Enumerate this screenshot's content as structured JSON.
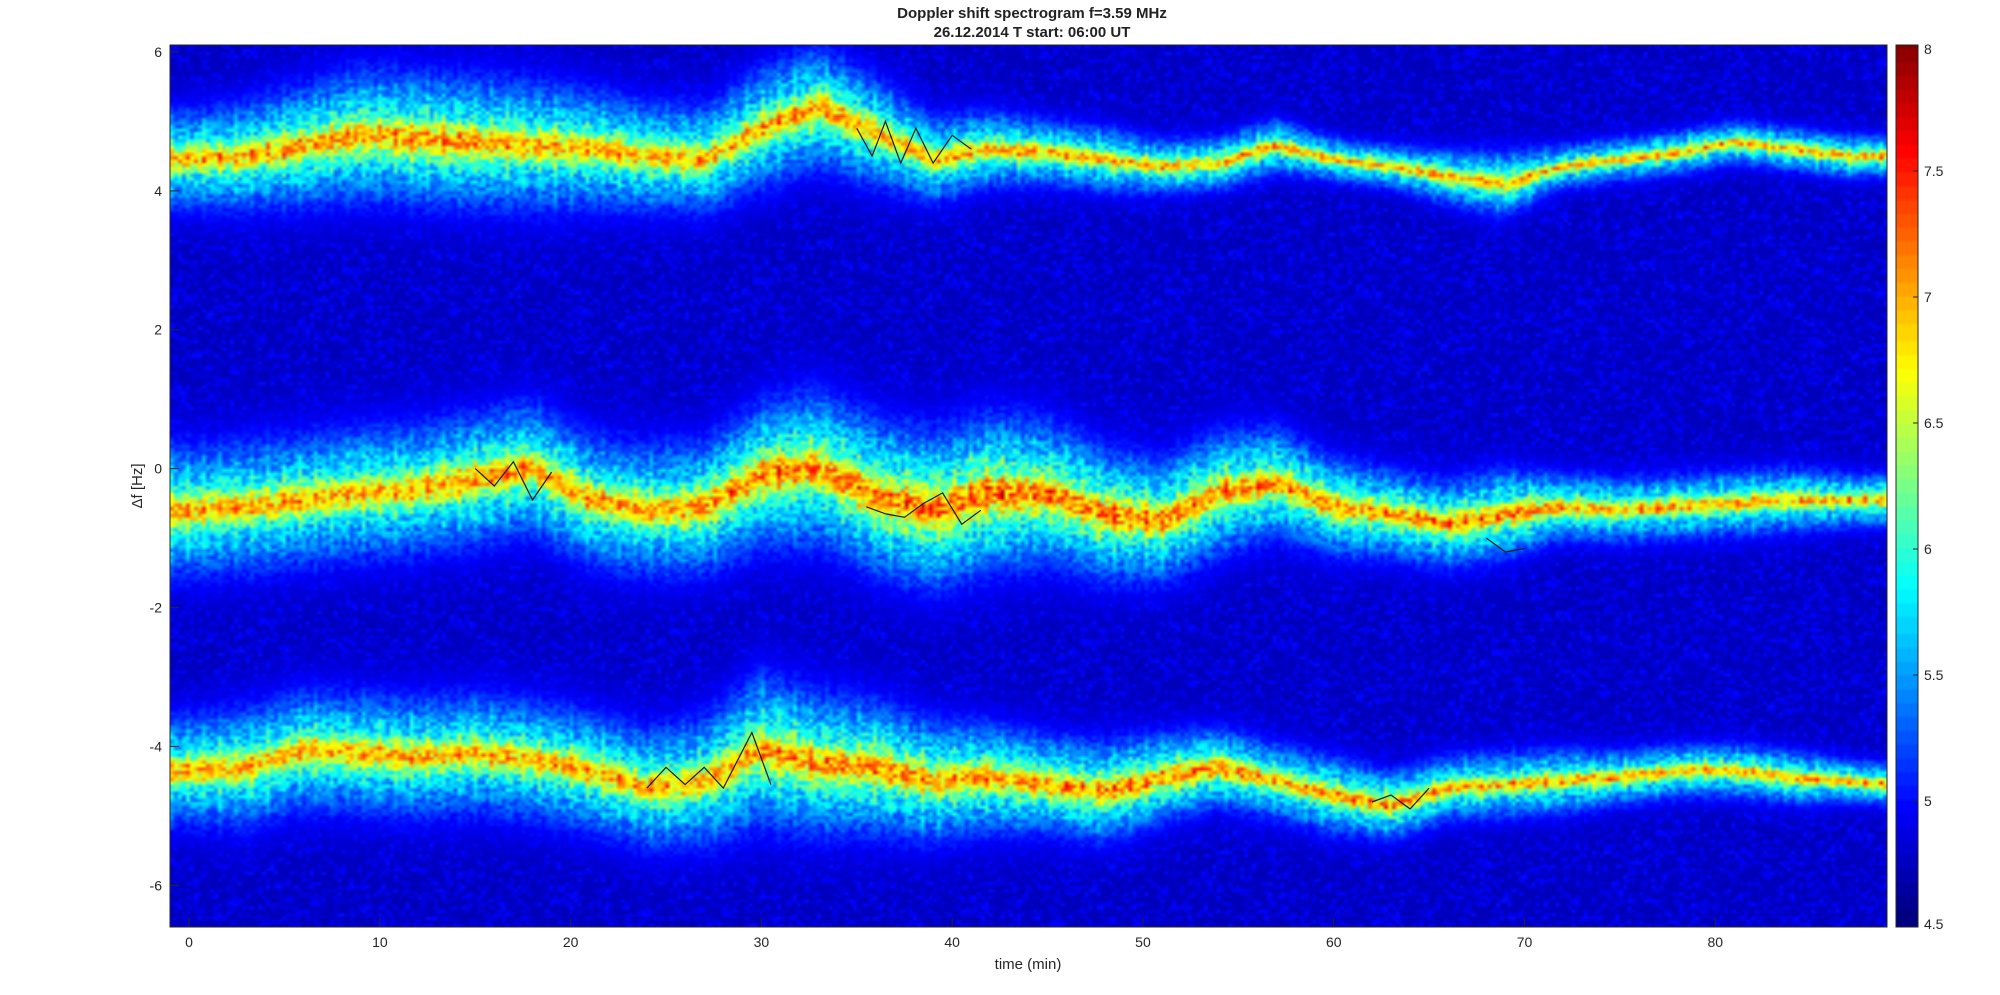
{
  "chart_data": {
    "type": "heatmap",
    "title": "Doppler shift spectrogram f=3.59 MHz",
    "subtitle": "26.12.2014   T start: 06:00 UT",
    "xlabel": "time (min)",
    "ylabel": "Δf [Hz]",
    "xlim": [
      -1,
      89
    ],
    "ylim": [
      -6.6,
      6.1
    ],
    "x_ticks": [
      0,
      10,
      20,
      30,
      40,
      50,
      60,
      70,
      80
    ],
    "y_ticks": [
      6,
      4,
      2,
      0,
      -2,
      -4,
      -6
    ],
    "colorbar": {
      "limits": [
        4.5,
        8
      ],
      "ticks": [
        8,
        7.5,
        7,
        6.5,
        6,
        5.5,
        5,
        4.5
      ],
      "colormap": "jet"
    },
    "background_value": 4.7,
    "series": [
      {
        "name": "",
        "x": [
          0,
          3,
          6,
          9,
          12,
          15,
          18,
          21,
          24,
          27,
          30,
          33,
          36,
          39,
          42,
          45,
          48,
          51,
          54,
          57,
          60,
          63,
          66,
          69,
          72,
          75,
          78,
          81,
          84,
          87,
          89
        ],
        "y": [
          4.45,
          4.5,
          4.65,
          4.8,
          4.75,
          4.7,
          4.65,
          4.6,
          4.5,
          4.45,
          4.9,
          5.2,
          4.85,
          4.45,
          4.6,
          4.55,
          4.45,
          4.35,
          4.4,
          4.65,
          4.45,
          4.35,
          4.2,
          4.1,
          4.35,
          4.45,
          4.55,
          4.7,
          4.6,
          4.5,
          4.5
        ],
        "width": [
          0.45,
          0.5,
          0.55,
          0.6,
          0.6,
          0.6,
          0.6,
          0.55,
          0.5,
          0.5,
          0.55,
          0.55,
          0.5,
          0.4,
          0.35,
          0.3,
          0.3,
          0.25,
          0.25,
          0.25,
          0.2,
          0.2,
          0.25,
          0.3,
          0.2,
          0.2,
          0.2,
          0.2,
          0.2,
          0.2,
          0.2
        ],
        "peak": [
          7.0,
          7.0,
          7.1,
          7.1,
          7.1,
          7.1,
          7.0,
          7.0,
          7.0,
          7.0,
          7.0,
          7.1,
          7.0,
          7.0,
          7.0,
          7.0,
          7.0,
          7.0,
          7.0,
          7.0,
          7.0,
          7.0,
          7.0,
          7.0,
          7.0,
          7.0,
          7.0,
          7.0,
          7.0,
          7.0,
          7.0
        ]
      },
      {
        "name": "",
        "x": [
          0,
          3,
          6,
          9,
          12,
          15,
          18,
          21,
          24,
          27,
          30,
          33,
          36,
          39,
          42,
          45,
          48,
          51,
          54,
          57,
          60,
          63,
          66,
          69,
          72,
          75,
          78,
          81,
          84,
          87,
          89
        ],
        "y": [
          -0.6,
          -0.55,
          -0.45,
          -0.35,
          -0.3,
          -0.15,
          0.0,
          -0.45,
          -0.6,
          -0.55,
          -0.1,
          0.0,
          -0.4,
          -0.6,
          -0.35,
          -0.35,
          -0.65,
          -0.75,
          -0.35,
          -0.2,
          -0.55,
          -0.65,
          -0.8,
          -0.65,
          -0.55,
          -0.6,
          -0.55,
          -0.5,
          -0.45,
          -0.45,
          -0.45
        ],
        "width": [
          0.6,
          0.6,
          0.6,
          0.6,
          0.6,
          0.6,
          0.6,
          0.6,
          0.6,
          0.6,
          0.65,
          0.7,
          0.7,
          0.7,
          0.7,
          0.65,
          0.6,
          0.55,
          0.55,
          0.5,
          0.45,
          0.4,
          0.4,
          0.4,
          0.3,
          0.3,
          0.3,
          0.3,
          0.3,
          0.25,
          0.25
        ],
        "peak": [
          7.0,
          7.0,
          7.0,
          7.0,
          7.0,
          7.1,
          7.1,
          7.0,
          7.0,
          7.1,
          7.2,
          7.2,
          7.2,
          7.3,
          7.3,
          7.2,
          7.2,
          7.2,
          7.2,
          7.1,
          7.1,
          7.1,
          7.1,
          7.2,
          7.1,
          7.0,
          7.0,
          7.0,
          7.0,
          7.0,
          7.0
        ]
      },
      {
        "name": "",
        "x": [
          0,
          3,
          6,
          9,
          12,
          15,
          18,
          21,
          24,
          27,
          30,
          33,
          36,
          39,
          42,
          45,
          48,
          51,
          54,
          57,
          60,
          63,
          66,
          69,
          72,
          75,
          78,
          81,
          84,
          87,
          89
        ],
        "y": [
          -4.35,
          -4.3,
          -4.05,
          -4.1,
          -4.15,
          -4.1,
          -4.2,
          -4.35,
          -4.6,
          -4.5,
          -4.05,
          -4.25,
          -4.3,
          -4.5,
          -4.45,
          -4.55,
          -4.65,
          -4.45,
          -4.3,
          -4.5,
          -4.7,
          -4.85,
          -4.6,
          -4.55,
          -4.5,
          -4.45,
          -4.35,
          -4.35,
          -4.45,
          -4.5,
          -4.55
        ],
        "width": [
          0.5,
          0.55,
          0.55,
          0.55,
          0.55,
          0.55,
          0.55,
          0.55,
          0.55,
          0.6,
          0.7,
          0.65,
          0.6,
          0.55,
          0.5,
          0.45,
          0.45,
          0.4,
          0.35,
          0.35,
          0.35,
          0.3,
          0.3,
          0.3,
          0.3,
          0.25,
          0.25,
          0.25,
          0.25,
          0.2,
          0.2
        ],
        "peak": [
          7.0,
          7.0,
          7.0,
          7.0,
          7.0,
          7.0,
          7.0,
          7.0,
          7.0,
          7.0,
          7.1,
          7.1,
          7.2,
          7.1,
          7.1,
          7.1,
          7.2,
          7.2,
          7.2,
          7.0,
          7.1,
          7.2,
          7.0,
          7.0,
          7.0,
          7.0,
          7.0,
          7.0,
          7.0,
          7.0,
          7.0
        ]
      }
    ],
    "tracked_traces": [
      {
        "x": [
          35,
          35.8,
          36.5,
          37.3,
          38.1,
          39,
          40,
          41
        ],
        "y": [
          4.9,
          4.5,
          5.0,
          4.4,
          4.9,
          4.4,
          4.8,
          4.6
        ]
      },
      {
        "x": [
          15,
          16,
          17,
          18,
          19
        ],
        "y": [
          0.0,
          -0.25,
          0.1,
          -0.45,
          -0.05
        ]
      },
      {
        "x": [
          35.5,
          36.5,
          37.5,
          38.5,
          39.5,
          40.5,
          41.5
        ],
        "y": [
          -0.55,
          -0.65,
          -0.7,
          -0.5,
          -0.35,
          -0.8,
          -0.6
        ]
      },
      {
        "x": [
          68,
          69,
          70
        ],
        "y": [
          -1.0,
          -1.2,
          -1.15
        ]
      },
      {
        "x": [
          24,
          25,
          26,
          27,
          28,
          29.5,
          30.5
        ],
        "y": [
          -4.6,
          -4.3,
          -4.55,
          -4.3,
          -4.6,
          -3.8,
          -4.55
        ]
      },
      {
        "x": [
          62,
          63,
          64,
          65
        ],
        "y": [
          -4.8,
          -4.7,
          -4.9,
          -4.6
        ]
      }
    ]
  }
}
